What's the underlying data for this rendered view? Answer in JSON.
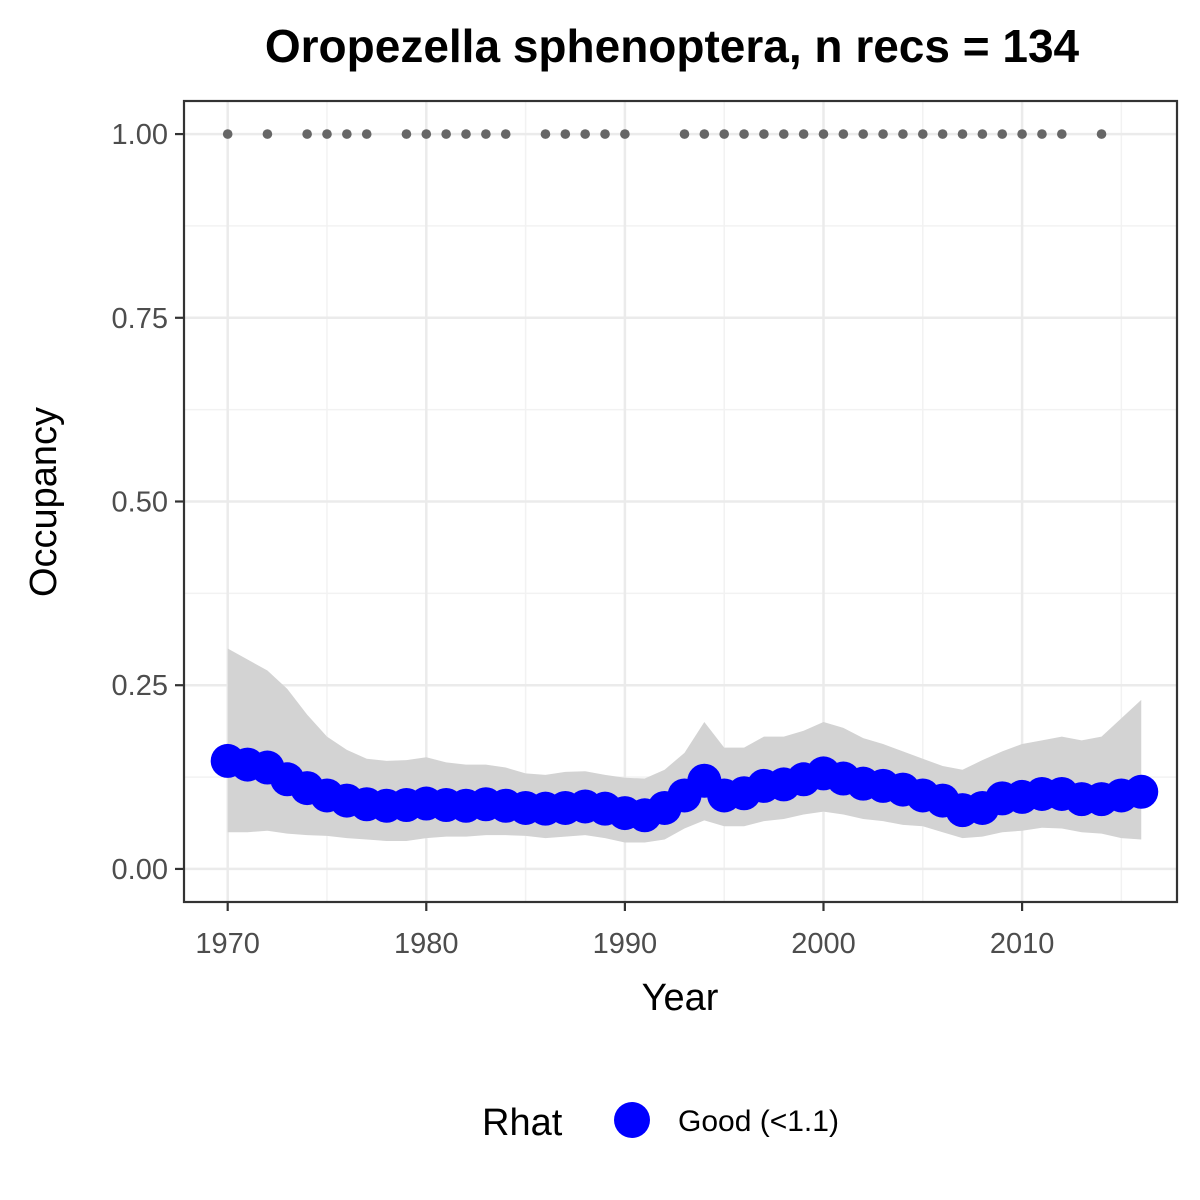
{
  "chart_data": {
    "type": "line",
    "title": "Oropezella sphenoptera, n recs = 134",
    "xlabel": "Year",
    "ylabel": "Occupancy",
    "xlim": [
      1967.8,
      2017.8
    ],
    "ylim": [
      -0.045,
      1.045
    ],
    "x_ticks": [
      1970,
      1980,
      1990,
      2000,
      2010
    ],
    "x_tick_labels": [
      "1970",
      "1980",
      "1990",
      "2000",
      "2010"
    ],
    "y_ticks": [
      0,
      0.25,
      0.5,
      0.75,
      1.0
    ],
    "y_tick_labels": [
      "0.00",
      "0.25",
      "0.50",
      "0.75",
      "1.00"
    ],
    "grid": true,
    "legend_position": "bottom",
    "legend": {
      "title": "Rhat",
      "entries": [
        {
          "label": "Good (<1.1)",
          "color": "#0000ff"
        }
      ]
    },
    "series": [
      {
        "name": "Good (<1.1)",
        "color": "#0000ff",
        "x": [
          1970,
          1971,
          1972,
          1973,
          1974,
          1975,
          1976,
          1977,
          1978,
          1979,
          1980,
          1981,
          1982,
          1983,
          1984,
          1985,
          1986,
          1987,
          1988,
          1989,
          1990,
          1991,
          1992,
          1993,
          1994,
          1995,
          1996,
          1997,
          1998,
          1999,
          2000,
          2001,
          2002,
          2003,
          2004,
          2005,
          2006,
          2007,
          2008,
          2009,
          2010,
          2011,
          2012,
          2013,
          2014,
          2015,
          2016
        ],
        "y": [
          0.147,
          0.142,
          0.138,
          0.122,
          0.11,
          0.1,
          0.093,
          0.088,
          0.086,
          0.087,
          0.089,
          0.087,
          0.086,
          0.088,
          0.086,
          0.083,
          0.082,
          0.083,
          0.085,
          0.082,
          0.076,
          0.073,
          0.083,
          0.1,
          0.12,
          0.1,
          0.103,
          0.113,
          0.115,
          0.122,
          0.13,
          0.123,
          0.116,
          0.113,
          0.108,
          0.1,
          0.093,
          0.08,
          0.083,
          0.096,
          0.098,
          0.102,
          0.102,
          0.095,
          0.095,
          0.1,
          0.105
        ],
        "lower": [
          0.05,
          0.05,
          0.052,
          0.048,
          0.046,
          0.045,
          0.042,
          0.04,
          0.038,
          0.038,
          0.042,
          0.044,
          0.044,
          0.046,
          0.046,
          0.045,
          0.042,
          0.044,
          0.046,
          0.042,
          0.036,
          0.036,
          0.04,
          0.055,
          0.066,
          0.058,
          0.058,
          0.065,
          0.068,
          0.074,
          0.078,
          0.074,
          0.068,
          0.065,
          0.06,
          0.058,
          0.05,
          0.042,
          0.044,
          0.05,
          0.052,
          0.056,
          0.055,
          0.05,
          0.048,
          0.042,
          0.04
        ],
        "upper": [
          0.3,
          0.285,
          0.27,
          0.245,
          0.21,
          0.18,
          0.162,
          0.15,
          0.147,
          0.148,
          0.152,
          0.145,
          0.142,
          0.142,
          0.138,
          0.13,
          0.128,
          0.132,
          0.133,
          0.128,
          0.124,
          0.123,
          0.135,
          0.158,
          0.2,
          0.165,
          0.165,
          0.18,
          0.18,
          0.188,
          0.2,
          0.192,
          0.178,
          0.17,
          0.16,
          0.15,
          0.14,
          0.135,
          0.148,
          0.16,
          0.17,
          0.175,
          0.18,
          0.175,
          0.18,
          0.205,
          0.23
        ]
      }
    ],
    "records": {
      "color": "#666666",
      "y": 1.0,
      "x": [
        1970,
        1972,
        1974,
        1975,
        1976,
        1977,
        1979,
        1980,
        1981,
        1982,
        1983,
        1984,
        1986,
        1987,
        1988,
        1989,
        1990,
        1993,
        1994,
        1995,
        1996,
        1997,
        1998,
        1999,
        2000,
        2001,
        2002,
        2003,
        2004,
        2005,
        2006,
        2007,
        2008,
        2009,
        2010,
        2011,
        2012,
        2014
      ]
    },
    "ribbon_color": "#d3d3d3"
  }
}
